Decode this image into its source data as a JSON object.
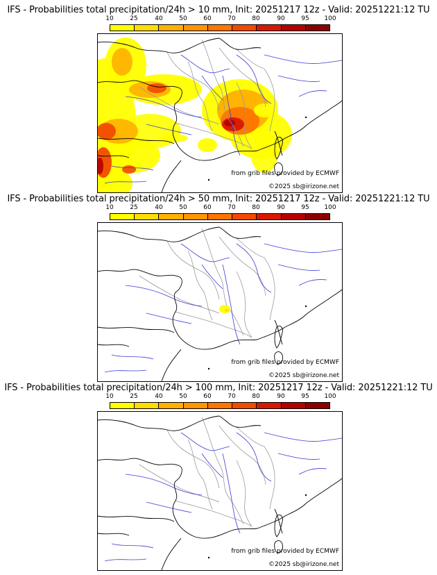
{
  "colors": {
    "scale": [
      "#ffff00",
      "#ffdd00",
      "#ffb000",
      "#ff9500",
      "#ff7500",
      "#f24a00",
      "#d81800",
      "#b50000",
      "#8c0000"
    ],
    "rivers": "#3a3ad6",
    "borders": "#999999",
    "coast": "#000000"
  },
  "scale": {
    "labels": [
      "10",
      "25",
      "40",
      "50",
      "60",
      "70",
      "80",
      "90",
      "95",
      "100"
    ]
  },
  "panels": [
    {
      "title": "IFS - Probabilities total precipitation/24h > 10 mm, Init: 20251217 12z - Valid: 20251221:12 TU",
      "credit_source": "from grib files provided by ECMWF",
      "credit_copyright": "©2025 sb@irizone.net",
      "has_precip": "heavy"
    },
    {
      "title": "IFS - Probabilities total precipitation/24h > 50 mm, Init: 20251217 12z - Valid: 20251221:12 TU",
      "credit_source": "from grib files provided by ECMWF",
      "credit_copyright": "©2025 sb@irizone.net",
      "has_precip": "small"
    },
    {
      "title": "IFS - Probabilities total precipitation/24h > 100 mm, Init: 20251217 12z - Valid: 20251221:12 TU",
      "credit_source": "from grib files provided by ECMWF",
      "credit_copyright": "©2025 sb@irizone.net",
      "has_precip": "none"
    }
  ]
}
